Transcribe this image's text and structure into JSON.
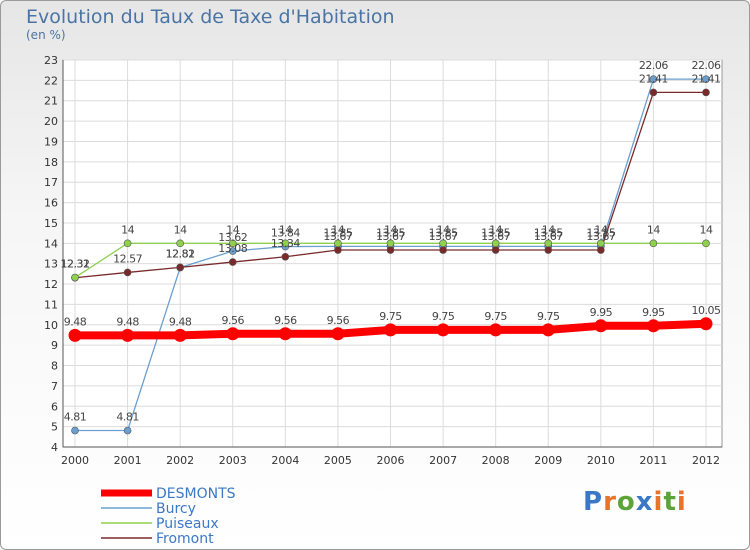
{
  "title": "Evolution du Taux de Taxe d'Habitation",
  "unit": "(en %)",
  "logo": {
    "text": "Proxiti",
    "colors": [
      "#3a78c7",
      "#e8732b",
      "#5aa43a",
      "#3a78c7",
      "#e8732b",
      "#5aa43a",
      "#e8732b"
    ]
  },
  "chart_data": {
    "type": "line",
    "x": [
      "2000",
      "2001",
      "2002",
      "2003",
      "2004",
      "2005",
      "2006",
      "2007",
      "2008",
      "2009",
      "2010",
      "2011",
      "2012"
    ],
    "ylim": [
      4,
      23
    ],
    "yticks": [
      4,
      5,
      6,
      7,
      8,
      9,
      10,
      11,
      12,
      13,
      14,
      15,
      16,
      17,
      18,
      19,
      20,
      21,
      22,
      23
    ],
    "grid": true,
    "legend_position": "bottom-left",
    "series": [
      {
        "name": "DESMONTS",
        "color": "#ff0000",
        "values": [
          9.48,
          9.48,
          9.48,
          9.56,
          9.56,
          9.56,
          9.75,
          9.75,
          9.75,
          9.75,
          9.95,
          9.95,
          10.05
        ],
        "labels": [
          "9.48",
          "9.48",
          "9.48",
          "9.56",
          "9.56",
          "9.56",
          "9.75",
          "9.75",
          "9.75",
          "9.75",
          "9.95",
          "9.95",
          "10.05"
        ]
      },
      {
        "name": "Burcy",
        "color": "#6a9fd0",
        "values": [
          4.81,
          4.81,
          12.81,
          13.62,
          13.84,
          13.85,
          13.85,
          13.85,
          13.85,
          13.85,
          13.85,
          22.06,
          22.06
        ],
        "labels": [
          "4.81",
          "4.81",
          "12.81",
          "13.62",
          "13.84",
          "13.85",
          "13.85",
          "13.85",
          "13.85",
          "13.85",
          "13.85",
          "22.06",
          "22.06"
        ]
      },
      {
        "name": "Puiseaux",
        "color": "#8fd14f",
        "values": [
          12.32,
          14,
          14,
          14,
          14,
          14,
          14,
          14,
          14,
          14,
          14,
          14,
          14
        ],
        "labels": [
          "12.32",
          "14",
          "14",
          "14",
          "14",
          "14",
          "14",
          "14",
          "14",
          "14",
          "14",
          "14",
          "14"
        ]
      },
      {
        "name": "Fromont",
        "color": "#7a2a2a",
        "values": [
          12.31,
          12.57,
          12.82,
          13.08,
          13.34,
          13.67,
          13.67,
          13.67,
          13.67,
          13.67,
          13.67,
          21.41,
          21.41
        ],
        "labels": [
          "12.31",
          "12.57",
          "12.82",
          "13.08",
          "13.34",
          "13.67",
          "13.67",
          "13.67",
          "13.67",
          "13.67",
          "13.67",
          "21.41",
          "21.41"
        ]
      }
    ]
  }
}
